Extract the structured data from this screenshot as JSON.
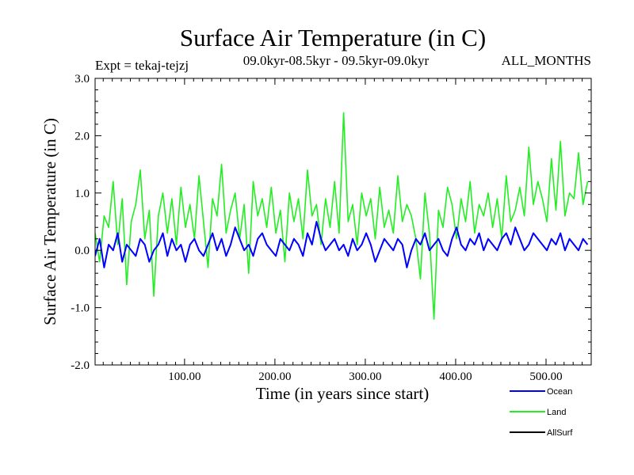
{
  "chart_data": {
    "type": "line",
    "title": "Surface Air Temperature (in C)",
    "subtitle_left": "Expt = tekaj-tejzj",
    "subtitle_center": "09.0kyr-08.5kyr - 09.5kyr-09.0kyr",
    "subtitle_right": "ALL_MONTHS",
    "xlabel": "Time (in years since start)",
    "ylabel": "Surface Air Temperature (in C)",
    "xlim": [
      1,
      550
    ],
    "ylim": [
      -2.0,
      3.0
    ],
    "x_ticks": [
      {
        "value": 100,
        "label": "100.00"
      },
      {
        "value": 200,
        "label": "200.00"
      },
      {
        "value": 300,
        "label": "300.00"
      },
      {
        "value": 400,
        "label": "400.00"
      },
      {
        "value": 500,
        "label": "500.00"
      }
    ],
    "y_ticks": [
      {
        "value": -2.0,
        "label": "-2.0"
      },
      {
        "value": -1.0,
        "label": "-1.0"
      },
      {
        "value": 0.0,
        "label": "0.0"
      },
      {
        "value": 1.0,
        "label": "1.0"
      },
      {
        "value": 2.0,
        "label": "2.0"
      },
      {
        "value": 3.0,
        "label": "3.0"
      }
    ],
    "grid": false,
    "legend_position": "bottom-right",
    "series": [
      {
        "name": "Land",
        "color": "#22ee22",
        "x_start": 1,
        "x_step": 5,
        "values": [
          0.3,
          -0.2,
          0.6,
          0.4,
          1.2,
          0.1,
          0.9,
          -0.6,
          0.5,
          0.8,
          1.4,
          0.2,
          0.7,
          -0.8,
          0.6,
          1.0,
          0.3,
          0.9,
          0.1,
          1.1,
          0.4,
          0.8,
          0.2,
          1.3,
          0.5,
          -0.3,
          0.9,
          0.6,
          1.5,
          0.3,
          0.7,
          1.0,
          0.2,
          0.8,
          -0.4,
          1.2,
          0.6,
          0.9,
          0.4,
          1.1,
          0.3,
          0.7,
          -0.2,
          1.0,
          0.5,
          0.9,
          0.2,
          1.4,
          0.6,
          0.8,
          0.1,
          0.9,
          0.4,
          1.2,
          0.3,
          2.4,
          0.5,
          0.8,
          0.1,
          1.0,
          0.6,
          0.9,
          0.2,
          1.1,
          0.4,
          0.7,
          0.3,
          1.3,
          0.5,
          0.8,
          0.6,
          0.2,
          -0.5,
          1.0,
          0.3,
          -1.2,
          0.7,
          0.4,
          1.1,
          0.8,
          0.2,
          0.9,
          0.5,
          1.2,
          0.3,
          0.8,
          0.6,
          1.0,
          0.4,
          0.9,
          0.2,
          1.3,
          0.5,
          0.7,
          1.1,
          0.6,
          1.8,
          0.8,
          1.2,
          0.9,
          0.5,
          1.6,
          0.7,
          1.9,
          0.6,
          1.0,
          0.9,
          1.7,
          0.8,
          1.2
        ]
      },
      {
        "name": "Ocean",
        "color": "#0000ff",
        "x_start": 1,
        "x_step": 5,
        "values": [
          -0.1,
          0.2,
          -0.3,
          0.1,
          0.0,
          0.3,
          -0.2,
          0.1,
          0.0,
          -0.1,
          0.2,
          0.1,
          -0.2,
          0.0,
          0.1,
          0.3,
          -0.1,
          0.2,
          0.0,
          0.1,
          -0.2,
          0.1,
          0.2,
          0.0,
          -0.1,
          0.1,
          0.3,
          0.0,
          0.2,
          -0.1,
          0.1,
          0.4,
          0.2,
          0.0,
          0.1,
          -0.1,
          0.2,
          0.3,
          0.1,
          0.0,
          -0.1,
          0.2,
          0.1,
          0.0,
          0.2,
          0.1,
          -0.1,
          0.3,
          0.1,
          0.5,
          0.2,
          0.0,
          0.1,
          0.2,
          0.0,
          0.1,
          -0.1,
          0.2,
          0.0,
          0.1,
          0.3,
          0.1,
          -0.2,
          0.0,
          0.2,
          0.1,
          0.0,
          0.2,
          0.1,
          -0.3,
          0.0,
          0.2,
          0.1,
          0.3,
          0.0,
          0.1,
          0.2,
          0.0,
          -0.1,
          0.2,
          0.4,
          0.1,
          0.0,
          0.2,
          0.1,
          0.3,
          0.0,
          0.2,
          0.1,
          0.0,
          0.2,
          0.3,
          0.1,
          0.4,
          0.2,
          0.0,
          0.1,
          0.3,
          0.2,
          0.1,
          0.0,
          0.2,
          0.1,
          0.3,
          0.0,
          0.2,
          0.1,
          0.0,
          0.2,
          0.1
        ]
      },
      {
        "name": "AllSurf",
        "color": "#000000",
        "x_start": 1,
        "x_step": 5,
        "values": []
      }
    ]
  }
}
